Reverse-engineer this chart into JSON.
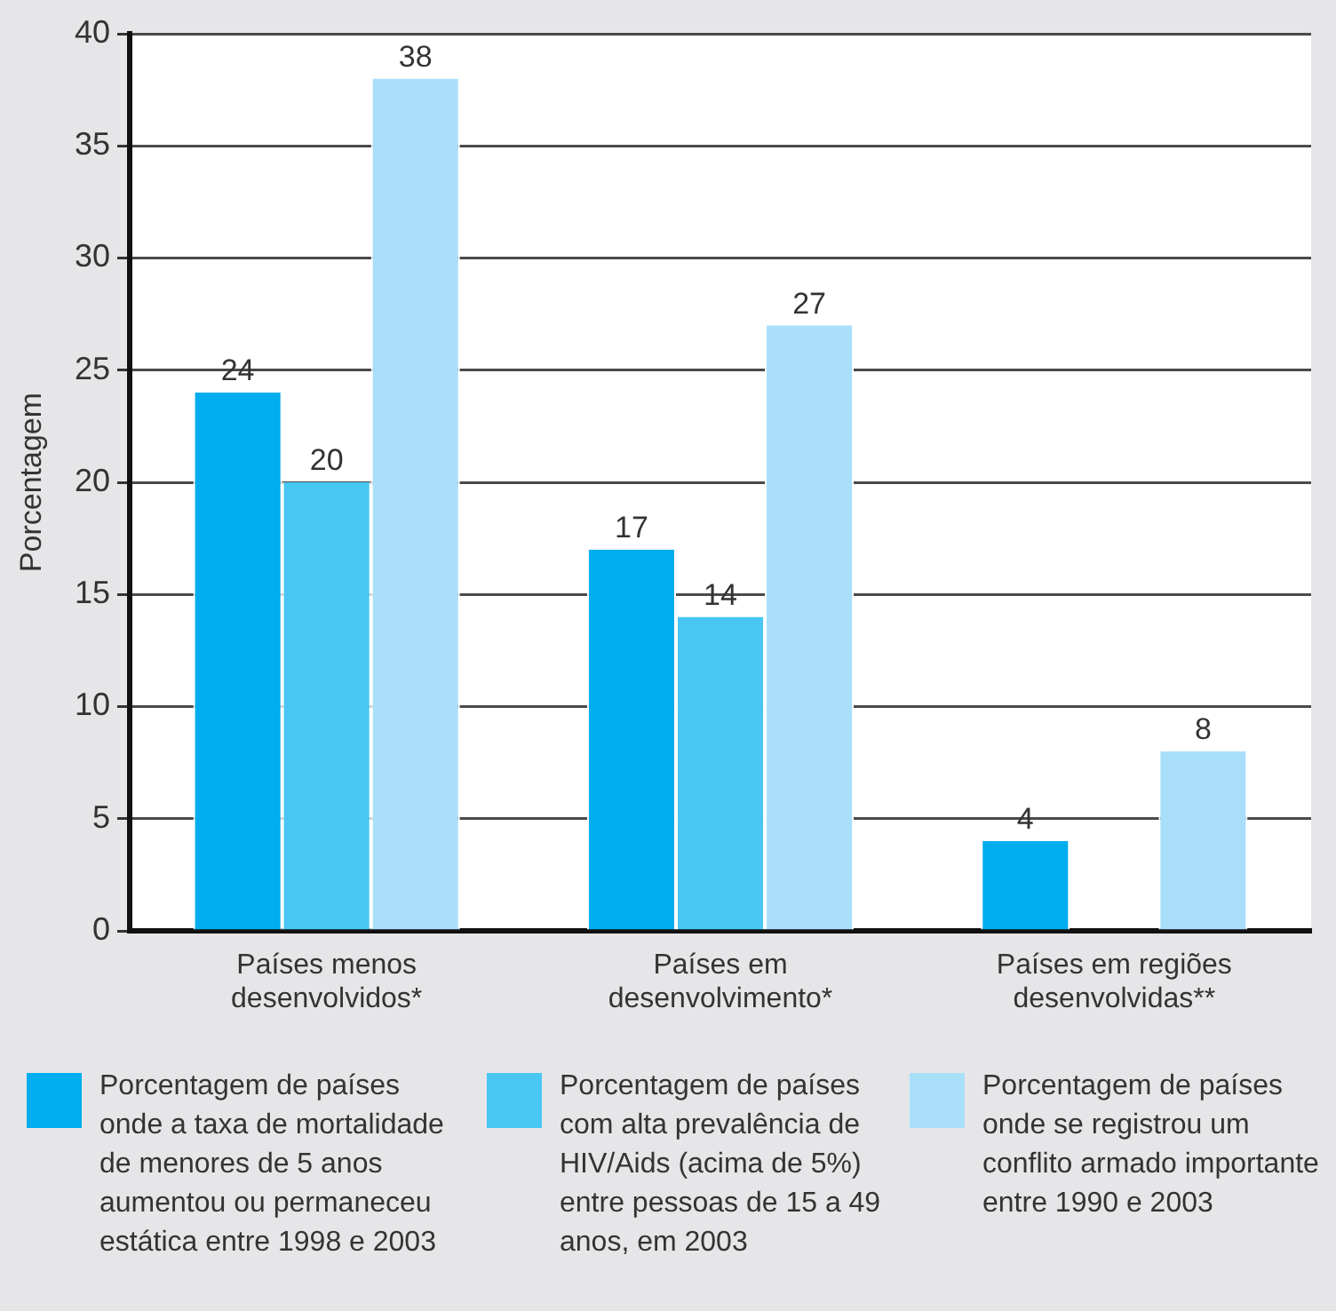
{
  "chart_data": {
    "type": "bar",
    "ylabel": "Porcentagem",
    "categories": [
      "Países menos desenvolvidos*",
      "Países em desenvolvimento*",
      "Países em regiões desenvolvidas**"
    ],
    "series": [
      {
        "name": "Porcentagem de países onde a taxa de mortalidade de menores de 5 anos aumentou ou permaneceu estática entre 1998 e 2003",
        "color": "#00adee",
        "values": [
          24,
          17,
          4
        ]
      },
      {
        "name": "Porcentagem de países com alta prevalência de HIV/Aids (acima de 5%) entre pessoas de 15 a 49 anos, em 2003",
        "color": "#48c7f2",
        "values": [
          20,
          14,
          null
        ]
      },
      {
        "name": "Porcentagem de países onde se registrou um conflito armado importante entre 1990 e 2003",
        "color": "#aadffa",
        "values": [
          38,
          27,
          8
        ]
      }
    ],
    "ylim": [
      0,
      40
    ],
    "yticks": [
      0,
      5,
      10,
      15,
      20,
      25,
      30,
      35,
      40
    ],
    "grid": "y",
    "data_labels": true,
    "legend": "bottom"
  }
}
